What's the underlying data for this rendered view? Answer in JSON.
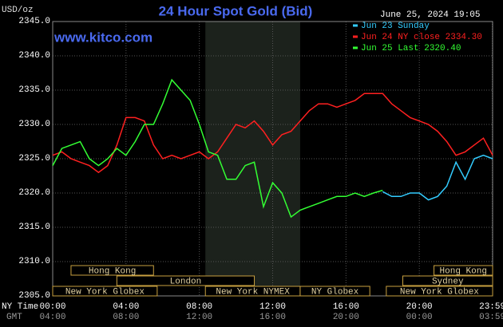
{
  "chart_data": {
    "type": "line",
    "title": "24 Hour Spot Gold (Bid)",
    "source": "www.kitco.com",
    "y_label": "USD/oz",
    "timestamp": "June 25, 2024 19:05",
    "x_label": "NY Time",
    "x2_label": "GMT",
    "x": [
      0,
      0.5,
      1,
      1.5,
      2,
      2.5,
      3,
      3.5,
      4,
      4.5,
      5,
      5.5,
      6,
      6.5,
      7,
      7.5,
      8,
      8.5,
      9,
      9.5,
      10,
      10.5,
      11,
      11.5,
      12,
      12.5,
      13,
      13.5,
      14,
      14.5,
      15,
      15.5,
      16,
      16.5,
      17,
      17.5,
      18,
      18.5,
      19,
      19.5,
      20,
      20.5,
      21,
      21.5,
      22,
      22.5,
      23,
      23.5,
      24
    ],
    "xlim": [
      0,
      24
    ],
    "xticks": [
      {
        "value": 0,
        "label": "00:00"
      },
      {
        "value": 4,
        "label": "04:00"
      },
      {
        "value": 8,
        "label": "08:00"
      },
      {
        "value": 12,
        "label": "12:00"
      },
      {
        "value": 16,
        "label": "16:00"
      },
      {
        "value": 20,
        "label": "20:00"
      },
      {
        "value": 23.983,
        "label": "23:59"
      }
    ],
    "x2ticklabels": [
      "04:00",
      "08:00",
      "12:00",
      "16:00",
      "20:00",
      "00:00",
      "03:59"
    ],
    "ylim": [
      2305,
      2345
    ],
    "yticks": [
      {
        "value": 2305,
        "label": "2305.0"
      },
      {
        "value": 2310,
        "label": "2310.0"
      },
      {
        "value": 2315,
        "label": "2315.0"
      },
      {
        "value": 2320,
        "label": "2320.0"
      },
      {
        "value": 2325,
        "label": "2325.0"
      },
      {
        "value": 2330,
        "label": "2330.0"
      },
      {
        "value": 2335,
        "label": "2335.0"
      },
      {
        "value": 2340,
        "label": "2340.0"
      },
      {
        "value": 2345,
        "label": "2345.0"
      }
    ],
    "grid": true,
    "series": [
      {
        "name": "Jun 23 Sunday",
        "color": "#33ccff",
        "values": [
          null,
          null,
          null,
          null,
          null,
          null,
          null,
          null,
          null,
          null,
          null,
          null,
          null,
          null,
          null,
          null,
          null,
          null,
          null,
          null,
          null,
          null,
          null,
          null,
          null,
          null,
          null,
          null,
          null,
          null,
          null,
          null,
          null,
          null,
          null,
          null,
          2320.2,
          2319.5,
          2319.5,
          2320,
          2320,
          2319,
          2319.5,
          2321,
          2324.5,
          2322,
          2325,
          2325.5,
          2325
        ]
      },
      {
        "name": "Jun 24 NY close 2334.30",
        "color": "#ff2020",
        "values": [
          2325.5,
          2326,
          2325,
          2324.5,
          2324,
          2323,
          2324,
          2327,
          2331,
          2331,
          2330.5,
          2327,
          2325,
          2325.5,
          2325,
          2325.5,
          2326,
          2325,
          2326,
          2328,
          2330,
          2329.5,
          2330.5,
          2329,
          2327,
          2328.5,
          2329,
          2330.5,
          2332,
          2333,
          2333,
          2332.5,
          2333,
          2333.5,
          2334.5,
          2334.5,
          2334.5,
          2333,
          2332,
          2331,
          2330.5,
          2330,
          2329,
          2327.5,
          2325.5,
          2326,
          2327,
          2328,
          2325.5
        ]
      },
      {
        "name": "Jun 25 Last 2320.40",
        "color": "#33ff33",
        "values": [
          2324,
          2326.5,
          2327,
          2327.5,
          2325,
          2324,
          2325,
          2326.5,
          2325.5,
          2327.5,
          2330,
          2330,
          2333,
          2336.5,
          2335,
          2333.5,
          2330,
          2326,
          2325.5,
          2322,
          2322,
          2324,
          2324.5,
          2318,
          2321.5,
          2320,
          2316.5,
          2317.5,
          2318,
          2318.5,
          2319,
          2319.5,
          2319.5,
          2320,
          2319.5,
          2320,
          2320.4,
          null,
          null,
          null,
          null,
          null,
          null,
          null,
          null,
          null,
          null,
          null,
          null
        ]
      }
    ],
    "session_rows": [
      [
        {
          "label": "Hong Kong",
          "start": 1,
          "end": 5.5
        },
        {
          "label": "Hong Kong",
          "start": 20.8,
          "end": 24
        }
      ],
      [
        {
          "label": "London",
          "start": 3.5,
          "end": 11
        },
        {
          "label": "Sydney",
          "start": 19.1,
          "end": 24
        }
      ],
      [
        {
          "label": "New York Globex",
          "start": 0,
          "end": 5.7
        },
        {
          "label": "New York NYMEX",
          "start": 8.33,
          "end": 13.5,
          "shaded": true
        },
        {
          "label": "NY Globex",
          "start": 13.5,
          "end": 17.3
        },
        {
          "label": "New York Globex",
          "start": 18.2,
          "end": 24
        }
      ]
    ]
  }
}
